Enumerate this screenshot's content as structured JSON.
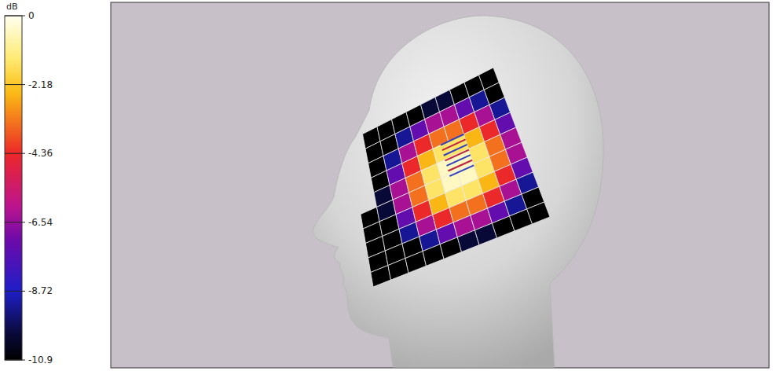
{
  "chart_data": {
    "type": "heatmap",
    "color_label": "dB",
    "color_range": [
      -10.9,
      0
    ],
    "color_ticks": [
      0,
      -2.18,
      -4.36,
      -6.54,
      -8.72,
      -10.9
    ],
    "tick_labels": false,
    "cells": [
      [
        null,
        -10.9,
        -10.9,
        -10.9,
        -10.9,
        -10.1,
        -10.1,
        -10.9,
        -10.9,
        -10.9
      ],
      [
        null,
        -10.9,
        -10.9,
        -9.2,
        -7.3,
        -6.3,
        -6.3,
        -7.3,
        -9.2,
        -10.9
      ],
      [
        null,
        -10.9,
        -9.2,
        -6.3,
        -4.4,
        -3.4,
        -3.4,
        -4.4,
        -6.3,
        -9.2
      ],
      [
        null,
        -10.9,
        -7.3,
        -4.4,
        -2.5,
        -1.5,
        -1.5,
        -2.5,
        -4.4,
        -7.3
      ],
      [
        null,
        -10.1,
        -6.3,
        -3.4,
        -1.5,
        -0.5,
        -0.5,
        -1.5,
        -3.4,
        -6.3
      ],
      [
        -10.9,
        -10.1,
        -6.3,
        -3.4,
        -1.5,
        -0.5,
        -0.5,
        -1.5,
        -3.4,
        -6.3
      ],
      [
        -10.9,
        -10.9,
        -7.3,
        -4.4,
        -2.5,
        -1.5,
        -1.5,
        -2.5,
        -4.4,
        -7.3
      ],
      [
        -10.9,
        -10.9,
        -9.2,
        -6.3,
        -4.4,
        -3.4,
        -3.4,
        -4.4,
        -6.3,
        -9.2
      ],
      [
        -10.9,
        -10.9,
        -10.9,
        -9.2,
        -7.3,
        -6.3,
        -6.3,
        -7.3,
        -9.2,
        -10.9
      ],
      [
        -10.9,
        -10.9,
        -10.9,
        -10.9,
        -10.9,
        -10.1,
        -10.1,
        -10.9,
        -10.9,
        -10.9
      ]
    ]
  }
}
